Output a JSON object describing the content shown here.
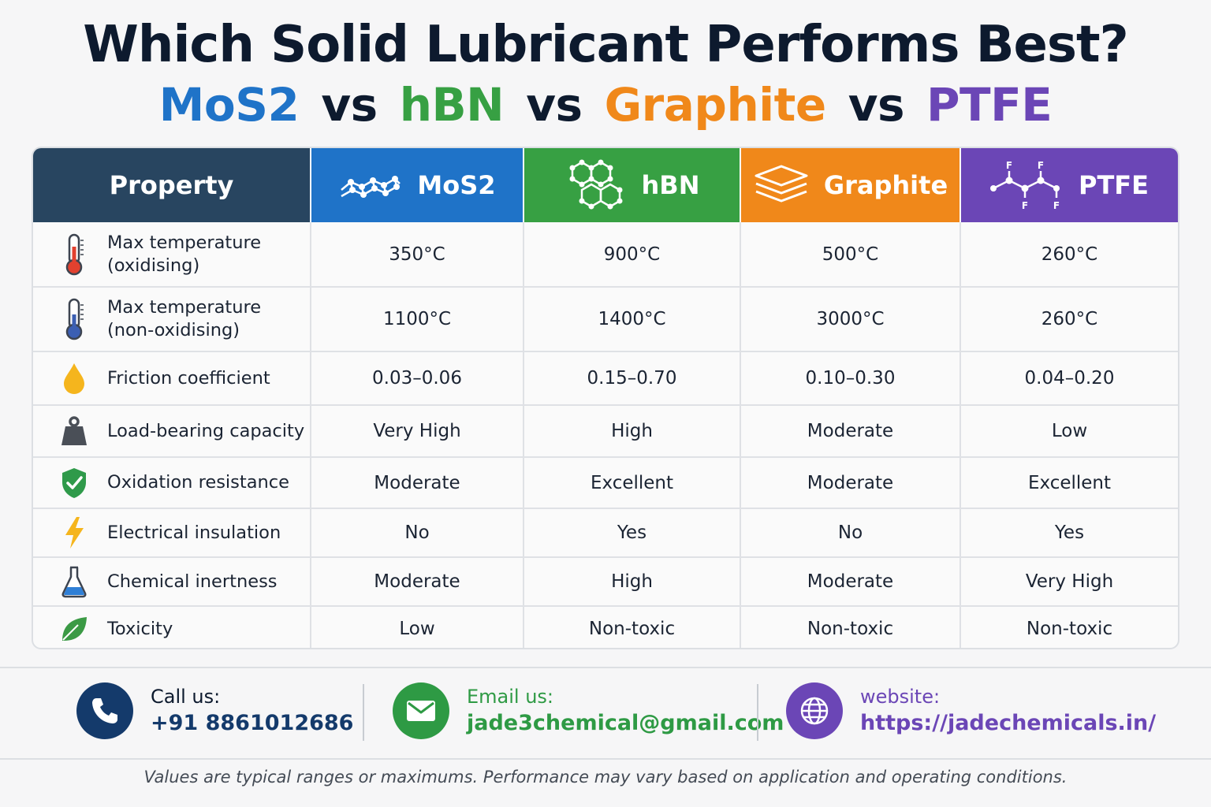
{
  "title": "Which Solid Lubricant Performs Best?",
  "subtitle": {
    "items": [
      "MoS2",
      "vs",
      "hBN",
      "vs",
      "Graphite",
      "vs",
      "PTFE"
    ],
    "colors": [
      "#1f73c8",
      "#0d1a2e",
      "#37a043",
      "#0d1a2e",
      "#f0881a",
      "#0d1a2e",
      "#6b46b6"
    ]
  },
  "table": {
    "header": {
      "property": "Property",
      "materials": [
        {
          "name": "MoS2",
          "color": "#1f73c8",
          "icon": "molecular-lattice-icon"
        },
        {
          "name": "hBN",
          "color": "#37a043",
          "icon": "hexagon-network-icon"
        },
        {
          "name": "Graphite",
          "color": "#f0881a",
          "icon": "stacked-layers-icon"
        },
        {
          "name": "PTFE",
          "color": "#6b46b6",
          "icon": "fluoro-chain-icon",
          "atom_labels": [
            "F",
            "F",
            "F",
            "F"
          ]
        }
      ]
    },
    "rows": [
      {
        "property": "Max temperature\n(oxidising)",
        "icon": "thermometer-hot-icon",
        "values": [
          "350°C",
          "900°C",
          "500°C",
          "260°C"
        ]
      },
      {
        "property": "Max temperature\n(non-oxidising)",
        "icon": "thermometer-cold-icon",
        "values": [
          "1100°C",
          "1400°C",
          "3000°C",
          "260°C"
        ]
      },
      {
        "property": "Friction coefficient",
        "icon": "droplet-icon",
        "values": [
          "0.03–0.06",
          "0.15–0.70",
          "0.10–0.30",
          "0.04–0.20"
        ]
      },
      {
        "property": "Load-bearing capacity",
        "icon": "weight-icon",
        "values": [
          "Very High",
          "High",
          "Moderate",
          "Low"
        ]
      },
      {
        "property": "Oxidation resistance",
        "icon": "shield-check-icon",
        "values": [
          "Moderate",
          "Excellent",
          "Moderate",
          "Excellent"
        ]
      },
      {
        "property": "Electrical insulation",
        "icon": "lightning-icon",
        "values": [
          "No",
          "Yes",
          "No",
          "Yes"
        ]
      },
      {
        "property": "Chemical inertness",
        "icon": "flask-icon",
        "values": [
          "Moderate",
          "High",
          "Moderate",
          "Very High"
        ]
      },
      {
        "property": "Toxicity",
        "icon": "leaf-icon",
        "values": [
          "Low",
          "Non-toxic",
          "Non-toxic",
          "Non-toxic"
        ]
      }
    ]
  },
  "contacts": {
    "phone": {
      "label": "Call us:",
      "value": "+91 8861012686",
      "icon": "phone-icon"
    },
    "email": {
      "label": "Email us:",
      "value": "jade3chemical@gmail.com",
      "icon": "envelope-icon"
    },
    "website": {
      "label": "website:",
      "value": "https://jadechemicals.in/",
      "icon": "globe-icon"
    }
  },
  "footnote": "Values are typical ranges or maximums. Performance may vary based on application and operating conditions."
}
